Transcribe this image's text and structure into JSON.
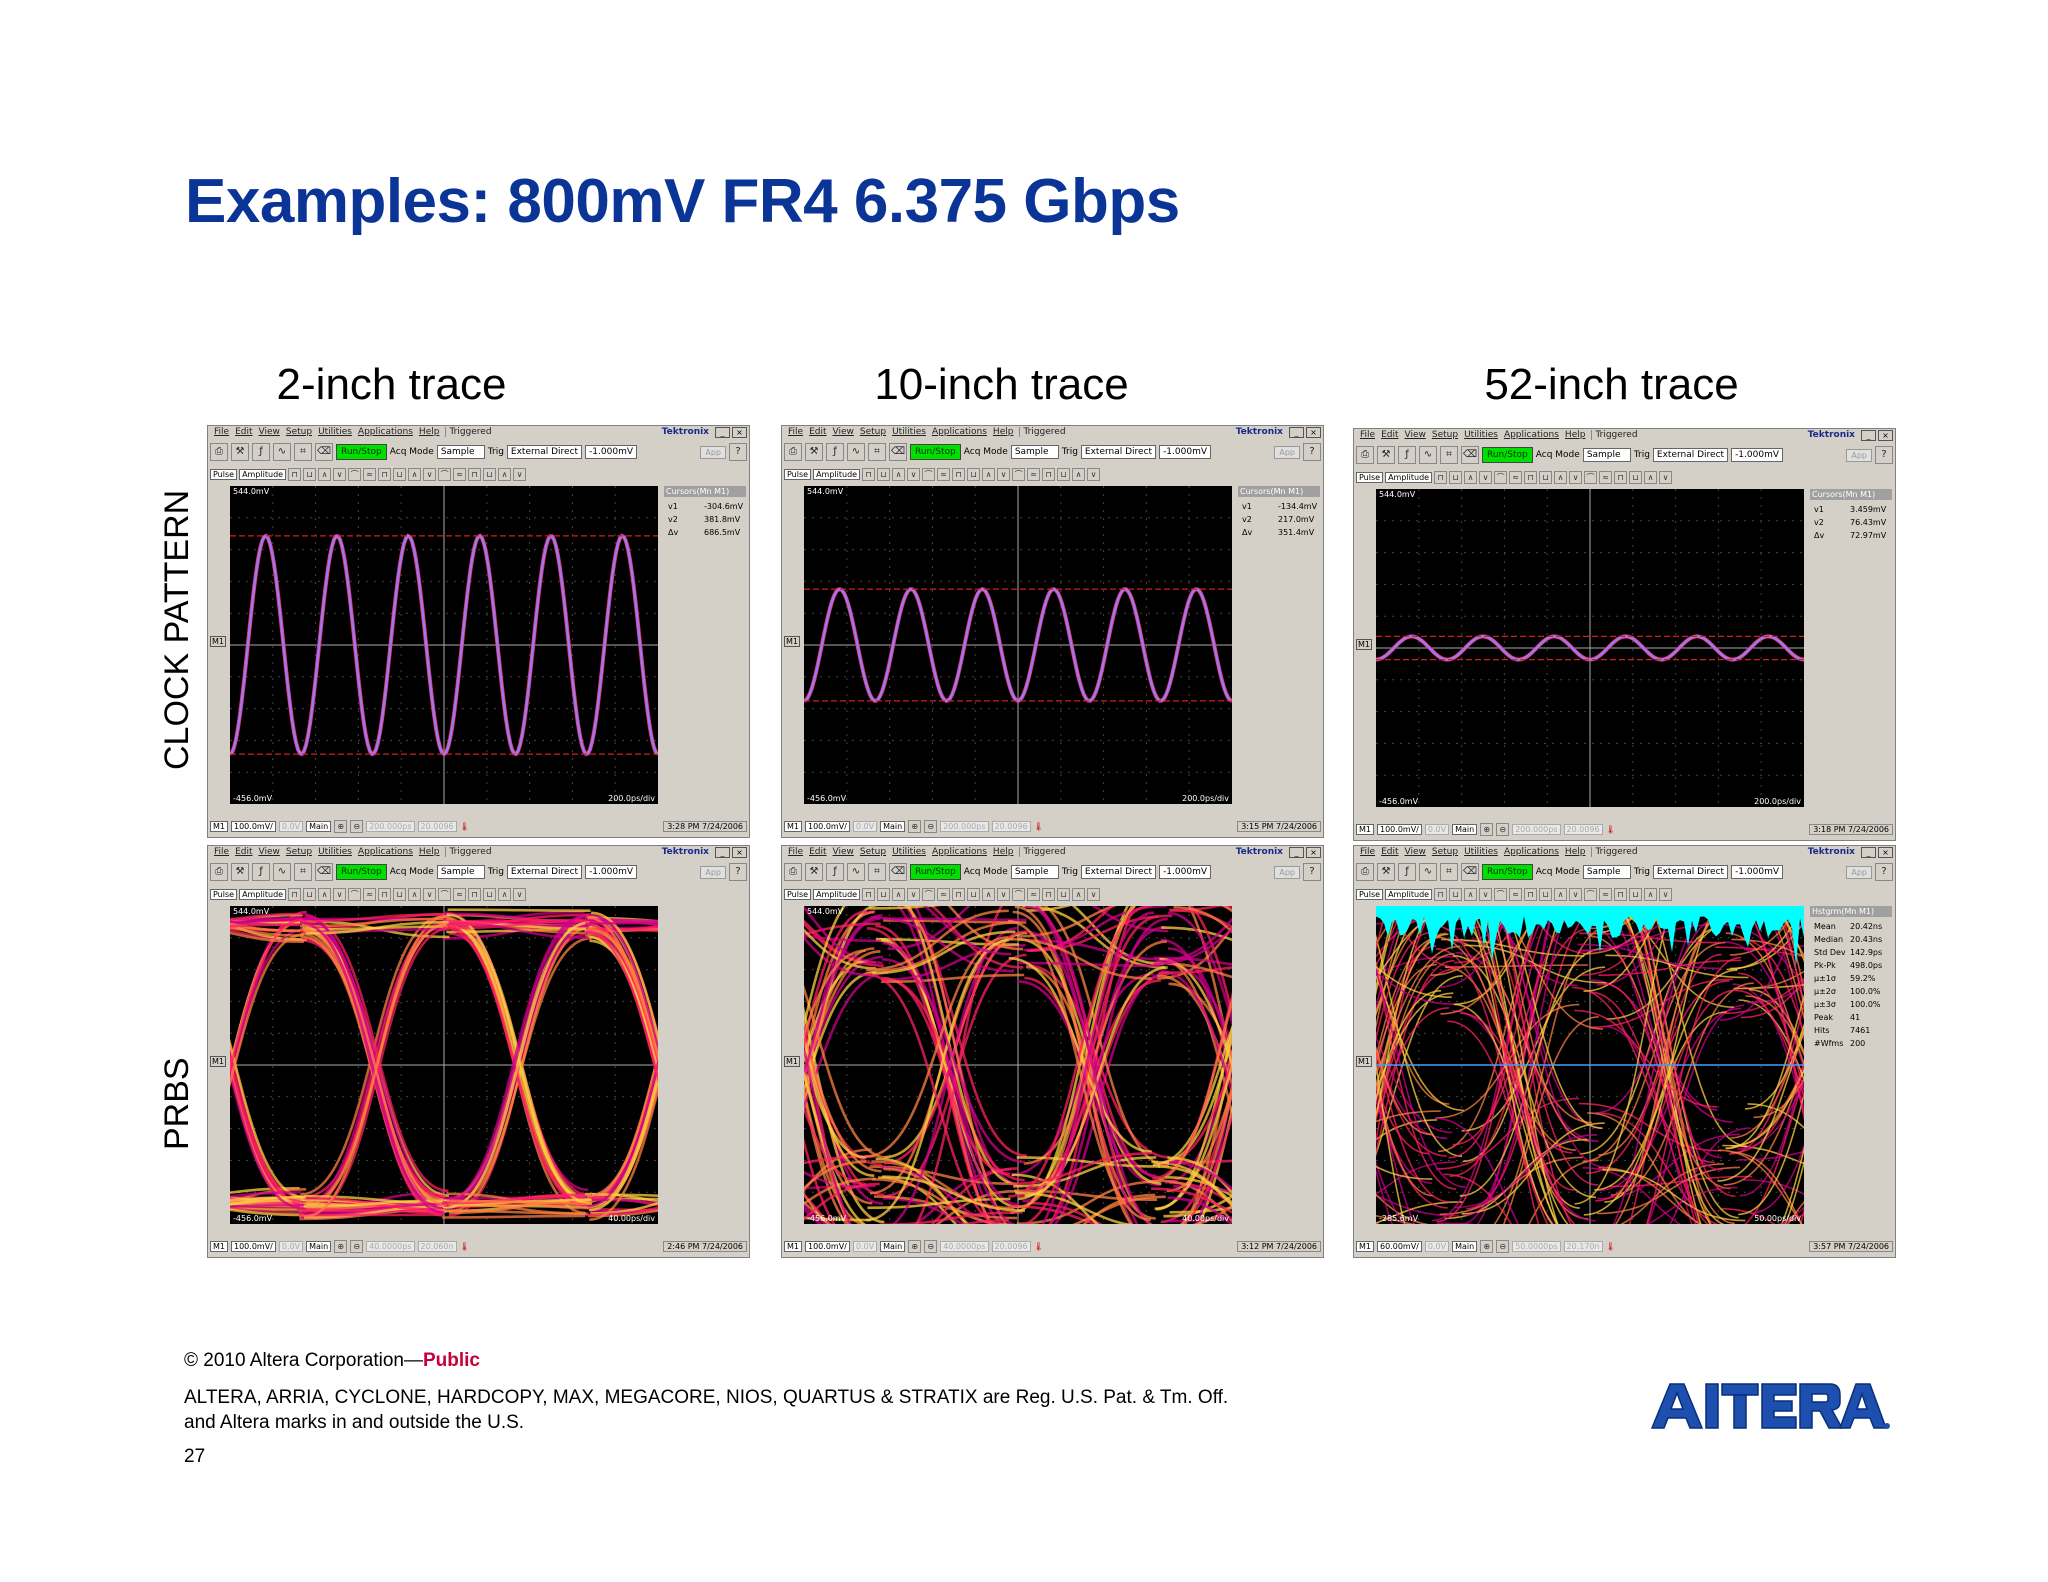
{
  "slide": {
    "title": "Examples: 800mV FR4 6.375 Gbps",
    "columns": [
      "2-inch trace",
      "10-inch trace",
      "52-inch trace"
    ],
    "rows": [
      "CLOCK PATTERN",
      "PRBS"
    ],
    "page_number": "27"
  },
  "footer": {
    "copyright": "© 2010 Altera Corporation—",
    "public": "Public",
    "trademark_line1": "ALTERA, ARRIA, CYCLONE, HARDCOPY, MAX, MEGACORE, NIOS, QUARTUS & STRATIX are Reg. U.S. Pat. & Tm. Off.",
    "trademark_line2": "and Altera marks in and outside the U.S.",
    "logo_text": "ALTERA."
  },
  "scope_ui": {
    "menu": [
      "File",
      "Edit",
      "View",
      "Setup",
      "Utilities",
      "Applications",
      "Help"
    ],
    "triggered": "Triggered",
    "brand": "Tektronix",
    "run_stop": "Run/Stop",
    "acq_mode_label": "Acq Mode",
    "acq_mode_value": "Sample",
    "trig_label": "Trig",
    "trig_value": "External Direct",
    "trig_level": "-1.000mV",
    "app_button": "App",
    "pulse": "Pulse",
    "amplitude": "Amplitude",
    "main_button": "Main",
    "m1_marker": "M1",
    "channel_label": "M1",
    "offset": "0.0V",
    "colors": {
      "chrome": "#d4d0c8",
      "screen": "#000000",
      "run_stop": "#00e000",
      "title": "#0a3596",
      "public": "#c8003a",
      "histogram": "#00ffff"
    }
  },
  "screens": [
    {
      "id": "clock-2in",
      "kind": "clock",
      "top_ref": "544.0mV",
      "bottom_ref": "-456.0mV",
      "timebase": "200.0ps/div",
      "scale": "100.0mV/",
      "delay": "200.000ps",
      "fine": "20.0096",
      "time": "3:28 PM 7/24/2006",
      "readout_title": "Cursors(Mn M1)",
      "readout": [
        [
          "v1",
          "-304.6mV"
        ],
        [
          "v2",
          "381.8mV"
        ],
        [
          "Δv",
          "686.5mV"
        ]
      ],
      "wave": {
        "amplitude_mV": 686.5,
        "cycles": 6
      }
    },
    {
      "id": "clock-10in",
      "kind": "clock",
      "top_ref": "544.0mV",
      "bottom_ref": "-456.0mV",
      "timebase": "200.0ps/div",
      "scale": "100.0mV/",
      "delay": "200.000ps",
      "fine": "20.0096",
      "time": "3:15 PM 7/24/2006",
      "readout_title": "Cursors(Mn M1)",
      "readout": [
        [
          "v1",
          "-134.4mV"
        ],
        [
          "v2",
          "217.0mV"
        ],
        [
          "Δv",
          "351.4mV"
        ]
      ],
      "wave": {
        "amplitude_mV": 351.4,
        "cycles": 6
      }
    },
    {
      "id": "clock-52in",
      "kind": "clock",
      "top_ref": "544.0mV",
      "bottom_ref": "-456.0mV",
      "timebase": "200.0ps/div",
      "scale": "100.0mV/",
      "delay": "200.000ps",
      "fine": "20.0096",
      "time": "3:18 PM 7/24/2006",
      "readout_title": "Cursors(Mn M1)",
      "readout": [
        [
          "v1",
          "3.459mV"
        ],
        [
          "v2",
          "76.43mV"
        ],
        [
          "Δv",
          "72.97mV"
        ]
      ],
      "wave": {
        "amplitude_mV": 72.97,
        "cycles": 6
      }
    },
    {
      "id": "prbs-2in",
      "kind": "eye",
      "top_ref": "544.0mV",
      "bottom_ref": "-456.0mV",
      "timebase": "40.00ps/div",
      "scale": "100.0mV/",
      "delay": "40.0000ps",
      "fine": "20.060n",
      "time": "2:46 PM 7/24/2006",
      "readout_title": "",
      "readout": [],
      "eye": {
        "opening": 0.9,
        "jitter": 0.1
      }
    },
    {
      "id": "prbs-10in",
      "kind": "eye",
      "top_ref": "544.0mV",
      "bottom_ref": "-456.0mV",
      "timebase": "40.00ps/div",
      "scale": "100.0mV/",
      "delay": "40.0000ps",
      "fine": "20.0096",
      "time": "3:12 PM 7/24/2006",
      "readout_title": "",
      "readout": [],
      "eye": {
        "opening": 0.45,
        "jitter": 0.3
      }
    },
    {
      "id": "prbs-52in",
      "kind": "closed",
      "top_ref": "",
      "bottom_ref": "-285.6mV",
      "timebase": "50.00ps/div",
      "scale": "60.00mV/",
      "delay": "50.0000ps",
      "fine": "20.170n",
      "time": "3:57 PM 7/24/2006",
      "readout_title": "Hstgrm(Mn M1)",
      "readout": [
        [
          "Mean",
          "20.42ns"
        ],
        [
          "Median",
          "20.43ns"
        ],
        [
          "Std Dev",
          "142.9ps"
        ],
        [
          "Pk-Pk",
          "498.0ps"
        ],
        [
          "μ±1σ",
          "59.2%"
        ],
        [
          "μ±2σ",
          "100.0%"
        ],
        [
          "μ±3σ",
          "100.0%"
        ],
        [
          "Peak",
          "41"
        ],
        [
          "Hits",
          "7461"
        ],
        [
          "#Wfms",
          "200"
        ]
      ],
      "eye": {
        "opening": 0.0,
        "jitter": 0.5
      }
    }
  ]
}
